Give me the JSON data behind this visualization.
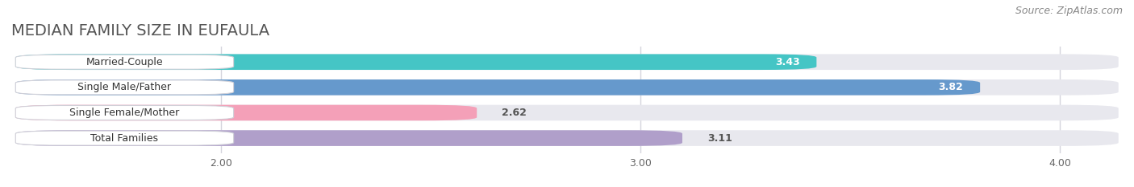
{
  "title": "MEDIAN FAMILY SIZE IN EUFAULA",
  "source": "Source: ZipAtlas.com",
  "categories": [
    "Married-Couple",
    "Single Male/Father",
    "Single Female/Mother",
    "Total Families"
  ],
  "values": [
    3.43,
    3.82,
    2.62,
    3.11
  ],
  "bar_colors": [
    "#45c5c5",
    "#6699cc",
    "#f4a0b8",
    "#b09fca"
  ],
  "bar_labels_inside": [
    true,
    true,
    false,
    false
  ],
  "label_values": [
    "3.43",
    "3.82",
    "2.62",
    "3.11"
  ],
  "xmin": 1.5,
  "xmax": 4.15,
  "xticks": [
    2.0,
    3.0,
    4.0
  ],
  "xtick_labels": [
    "2.00",
    "3.00",
    "4.00"
  ],
  "background_color": "#ffffff",
  "bar_bg_color": "#e8e8ee",
  "title_fontsize": 14,
  "source_fontsize": 9,
  "bar_height": 0.62,
  "figsize": [
    14.06,
    2.33
  ],
  "dpi": 100
}
